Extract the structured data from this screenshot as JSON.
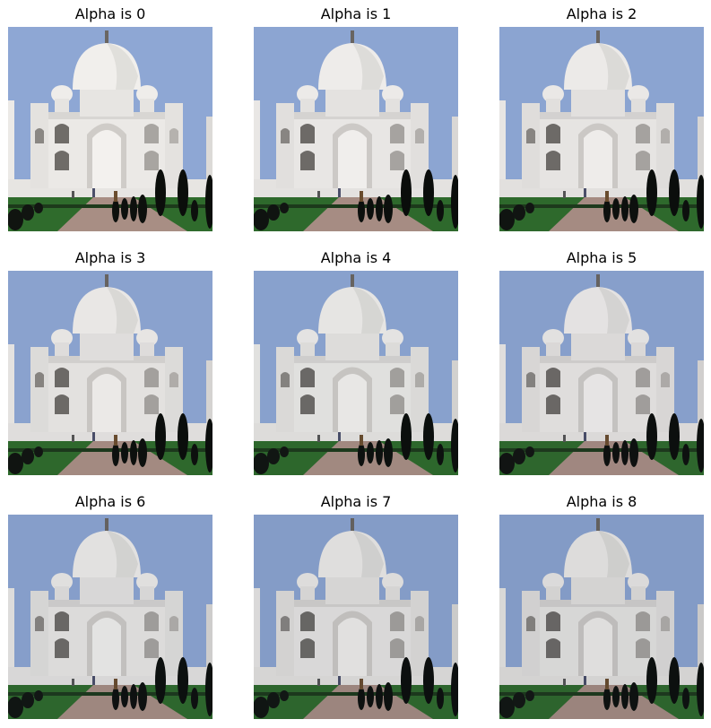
{
  "panels": [
    {
      "title": "Alpha is 0",
      "alpha": 0
    },
    {
      "title": "Alpha is 1",
      "alpha": 1
    },
    {
      "title": "Alpha is 2",
      "alpha": 2
    },
    {
      "title": "Alpha is 3",
      "alpha": 3
    },
    {
      "title": "Alpha is 4",
      "alpha": 4
    },
    {
      "title": "Alpha is 5",
      "alpha": 5
    },
    {
      "title": "Alpha is 6",
      "alpha": 6
    },
    {
      "title": "Alpha is 7",
      "alpha": 7
    },
    {
      "title": "Alpha is 8",
      "alpha": 8
    }
  ],
  "colors": {
    "sky": "#8fa8d6",
    "marble": "#e9e7e4",
    "marble_shadow": "#b9b7b5",
    "cypress": "#0e120e",
    "grass": "#2e6a2a",
    "path": "#a98f86"
  }
}
